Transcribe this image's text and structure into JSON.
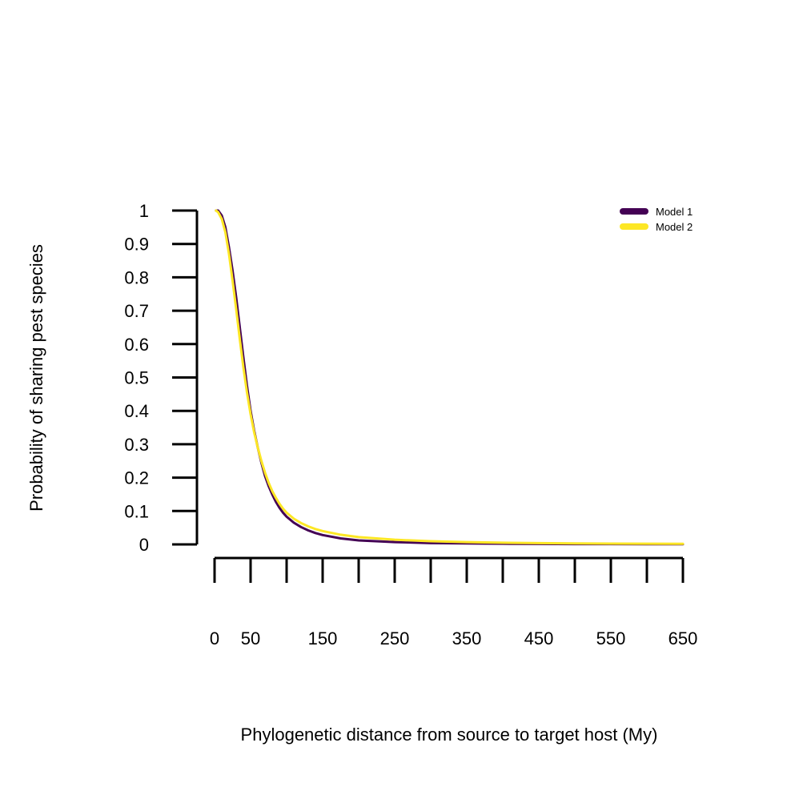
{
  "chart_data": {
    "type": "line",
    "xlabel": "Phylogenetic distance from source to target host (My)",
    "ylabel": "Probability of sharing pest species",
    "xlim": [
      0,
      650
    ],
    "ylim": [
      0,
      1
    ],
    "x_ticks": [
      0,
      50,
      100,
      150,
      200,
      250,
      300,
      350,
      400,
      450,
      500,
      550,
      600,
      650
    ],
    "x_tick_labels": [
      "0",
      "50",
      "150",
      "250",
      "350",
      "450",
      "550",
      "650"
    ],
    "x_tick_label_values": [
      0,
      50,
      150,
      250,
      350,
      450,
      550,
      650
    ],
    "y_ticks": [
      0,
      0.1,
      0.2,
      0.3,
      0.4,
      0.5,
      0.6,
      0.7,
      0.8,
      0.9,
      1
    ],
    "y_tick_labels": [
      "0",
      "0.1",
      "0.2",
      "0.3",
      "0.4",
      "0.5",
      "0.6",
      "0.7",
      "0.8",
      "0.9",
      "1"
    ],
    "grid": false,
    "legend_position": "top-right",
    "series": [
      {
        "name": "Model 1",
        "color": "#440154",
        "x": [
          2,
          5,
          10,
          15,
          20,
          25,
          30,
          35,
          40,
          45,
          50,
          55,
          60,
          65,
          70,
          75,
          80,
          85,
          90,
          95,
          100,
          110,
          120,
          130,
          140,
          150,
          175,
          200,
          250,
          300,
          350,
          400,
          450,
          500,
          550,
          600,
          650
        ],
        "y": [
          1.0,
          1.0,
          0.985,
          0.95,
          0.89,
          0.82,
          0.74,
          0.65,
          0.56,
          0.475,
          0.4,
          0.34,
          0.29,
          0.245,
          0.205,
          0.175,
          0.15,
          0.128,
          0.11,
          0.095,
          0.083,
          0.065,
          0.052,
          0.042,
          0.034,
          0.028,
          0.018,
          0.012,
          0.007,
          0.004,
          0.003,
          0.002,
          0.0015,
          0.001,
          0.0008,
          0.0006,
          0.0005
        ]
      },
      {
        "name": "Model 2",
        "color": "#fde725",
        "x": [
          2,
          5,
          10,
          15,
          20,
          25,
          30,
          35,
          40,
          45,
          50,
          55,
          60,
          65,
          70,
          75,
          80,
          85,
          90,
          95,
          100,
          110,
          120,
          130,
          140,
          150,
          175,
          200,
          250,
          300,
          350,
          400,
          450,
          500,
          550,
          600,
          650
        ],
        "y": [
          1.0,
          0.995,
          0.975,
          0.935,
          0.87,
          0.79,
          0.705,
          0.615,
          0.53,
          0.455,
          0.39,
          0.335,
          0.29,
          0.25,
          0.215,
          0.185,
          0.16,
          0.14,
          0.122,
          0.107,
          0.095,
          0.077,
          0.064,
          0.054,
          0.046,
          0.04,
          0.029,
          0.022,
          0.014,
          0.0095,
          0.0068,
          0.005,
          0.0038,
          0.003,
          0.0024,
          0.002,
          0.0017
        ]
      }
    ]
  }
}
